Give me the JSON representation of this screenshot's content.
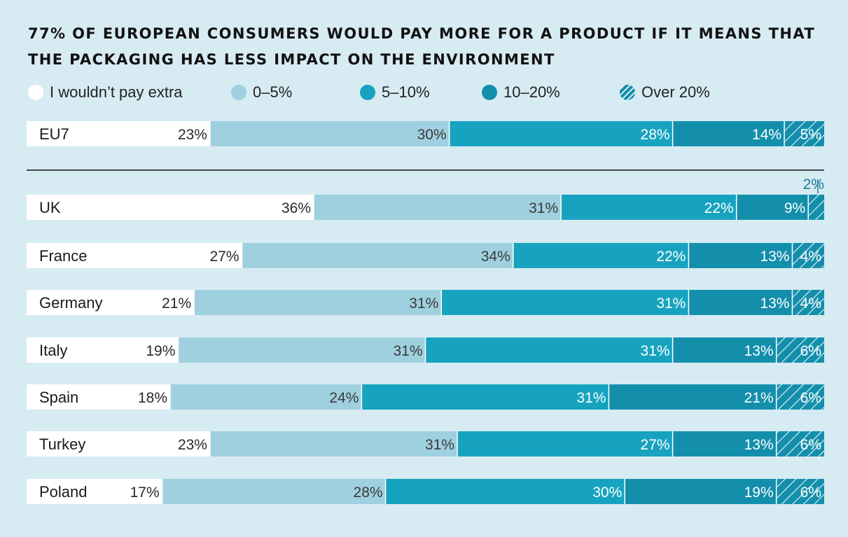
{
  "title_lines": [
    "77% OF EUROPEAN CONSUMERS WOULD PAY MORE FOR A PRODUCT IF IT MEANS THAT",
    "THE PACKAGING HAS LESS IMPACT ON THE ENVIRONMENT"
  ],
  "legend": [
    {
      "label": "I wouldn’t pay extra",
      "color": "#ffffff",
      "pattern": false
    },
    {
      "label": "0–5%",
      "color": "#9fd0df",
      "pattern": false
    },
    {
      "label": "5–10%",
      "color": "#17a3bf",
      "pattern": false
    },
    {
      "label": "10–20%",
      "color": "#138fac",
      "pattern": false
    },
    {
      "label": "Over 20%",
      "color": "#138fac",
      "pattern": true
    }
  ],
  "chart_data": {
    "type": "bar",
    "orientation": "horizontal",
    "stacked": true,
    "title": "77% OF EUROPEAN CONSUMERS WOULD PAY MORE FOR A PRODUCT IF IT MEANS THAT THE PACKAGING HAS LESS IMPACT ON THE ENVIRONMENT",
    "xlabel": "",
    "ylabel": "",
    "legend_position": "top",
    "grid": false,
    "categories": [
      "EU7",
      "UK",
      "France",
      "Germany",
      "Italy",
      "Spain",
      "Turkey",
      "Poland"
    ],
    "value_labels": [
      [
        "23%",
        "30%",
        "28%",
        "14%",
        "5%"
      ],
      [
        "36%",
        "31%",
        "22%",
        "9%",
        "2%"
      ],
      [
        "27%",
        "34%",
        "22%",
        "13%",
        "4%"
      ],
      [
        "21%",
        "31%",
        "31%",
        "13%",
        "4%"
      ],
      [
        "19%",
        "31%",
        "31%",
        "13%",
        "6%"
      ],
      [
        "18%",
        "24%",
        "31%",
        "21%",
        "6%"
      ],
      [
        "23%",
        "31%",
        "27%",
        "13%",
        "6%"
      ],
      [
        "17%",
        "28%",
        "30%",
        "19%",
        "6%"
      ]
    ],
    "series": [
      {
        "name": "I wouldn’t pay extra",
        "values": [
          23,
          36,
          27,
          21,
          19,
          18,
          23,
          17
        ]
      },
      {
        "name": "0–5%",
        "values": [
          30,
          31,
          34,
          31,
          31,
          24,
          31,
          28
        ]
      },
      {
        "name": "5–10%",
        "values": [
          28,
          22,
          22,
          31,
          31,
          31,
          27,
          30
        ]
      },
      {
        "name": "10–20%",
        "values": [
          14,
          9,
          13,
          13,
          13,
          21,
          13,
          19
        ]
      },
      {
        "name": "Over 20%",
        "values": [
          5,
          2,
          4,
          4,
          6,
          6,
          6,
          6
        ]
      }
    ]
  }
}
